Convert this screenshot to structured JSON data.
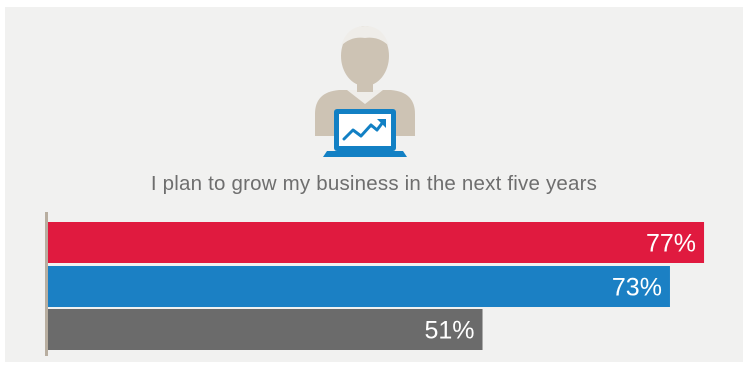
{
  "colors": {
    "background_panel": "#f1f1f0",
    "person_skin": "#cdc3b4",
    "person_hair": "#efede9",
    "laptop": "#1280c4",
    "bar_colors": [
      "#e01a3f",
      "#1b80c4",
      "#6b6b6b"
    ],
    "axis_line": "#b8aea0",
    "title_text": "#6e6e6e"
  },
  "icons": [
    "person-icon",
    "laptop-icon",
    "trend-arrow-icon"
  ],
  "chart_data": {
    "type": "bar",
    "orientation": "horizontal",
    "title": "I plan to grow my business in the next five years",
    "categories": [
      "",
      "",
      ""
    ],
    "values": [
      77,
      73,
      51
    ],
    "labels": [
      "77%",
      "73%",
      "51%"
    ],
    "xlim": [
      0,
      100
    ],
    "grid": false,
    "legend": "none"
  }
}
